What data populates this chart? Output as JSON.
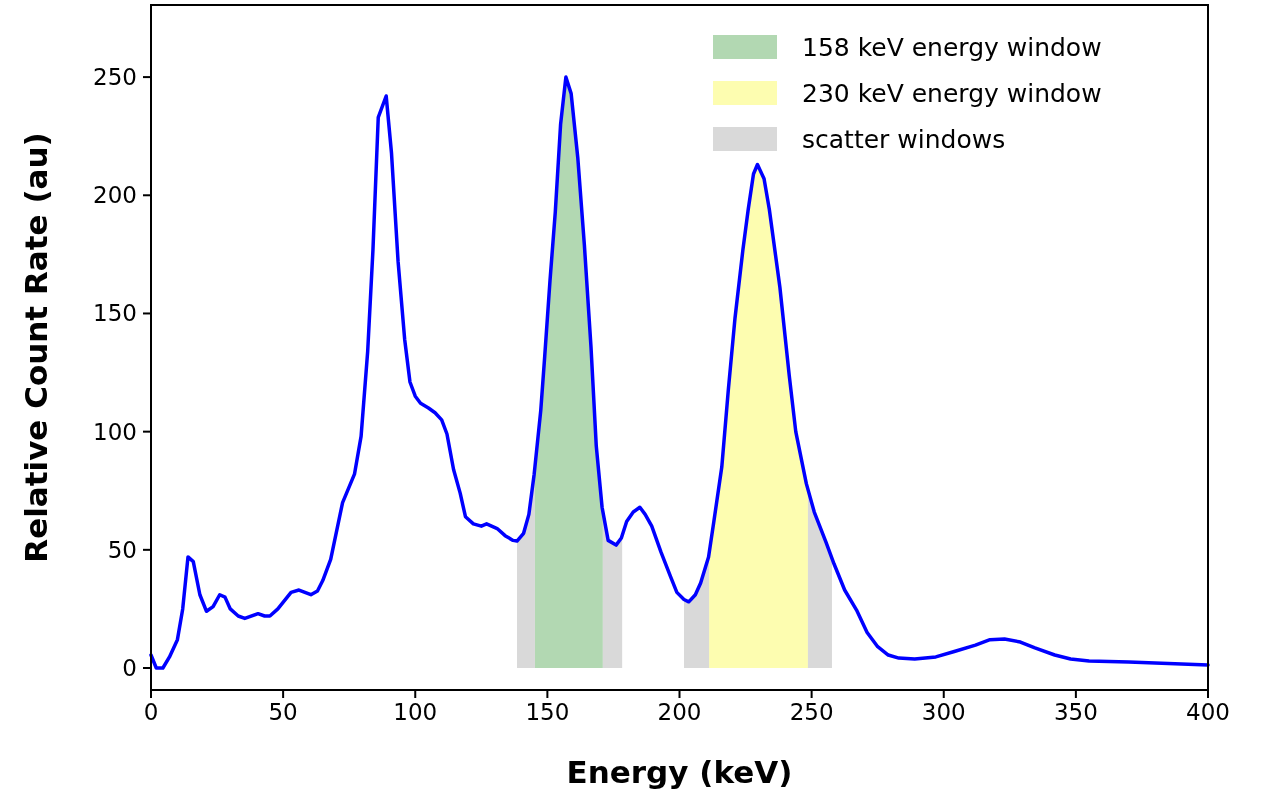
{
  "chart_data": {
    "type": "line",
    "xlabel": "Energy (keV)",
    "ylabel": "Relative Count Rate (au)",
    "xlim": [
      0,
      400
    ],
    "ylim": [
      -9.3,
      280.5
    ],
    "xticks": [
      0,
      50,
      100,
      150,
      200,
      250,
      300,
      350,
      400
    ],
    "yticks": [
      0,
      50,
      100,
      150,
      200,
      250
    ],
    "legend": "top right",
    "grid": false,
    "series": [
      {
        "type": "area",
        "name": "158 keV energy window",
        "color": "#b2d8b2",
        "x": [
          145.3,
          147.5,
          149,
          151,
          153,
          155,
          157,
          159,
          161.5,
          164,
          166.5,
          168.5,
          171
        ],
        "values": [
          85,
          109,
          132,
          164,
          193,
          230,
          250,
          243,
          216,
          179,
          136,
          94,
          66
        ]
      },
      {
        "type": "area",
        "name": "230 keV energy window",
        "color": "#fdfdb0",
        "x": [
          211.2,
          213,
          216,
          218.5,
          221,
          224,
          226,
          228,
          229.5,
          232,
          234,
          238,
          241.5,
          244,
          248.6
        ],
        "values": [
          48,
          62,
          85,
          118,
          148,
          177,
          194,
          209,
          213,
          207,
          194,
          161,
          124,
          100,
          76
        ]
      },
      {
        "type": "area",
        "name": "scatter windows",
        "color": "#d9d9d9",
        "x": [
          138.5,
          141,
          143,
          145.3,
          160,
          171,
          173,
          176,
          178.3,
          190,
          201.7,
          203.5,
          206,
          208,
          211.2,
          230,
          248.6,
          251,
          255.5,
          257.7
        ],
        "values": [
          53.7,
          57,
          65,
          85,
          null,
          66,
          54,
          52,
          56,
          null,
          29,
          28,
          31,
          36,
          48,
          null,
          76,
          66,
          53,
          48
        ]
      },
      {
        "color": "#0000ff",
        "x": [
          0,
          2,
          4.5,
          7,
          10,
          12,
          14,
          16,
          18.5,
          21,
          23.5,
          26,
          28,
          30,
          33,
          35.5,
          40.5,
          43,
          45,
          48,
          53,
          56,
          60.5,
          63,
          65,
          68,
          72.5,
          77,
          79.5,
          82,
          84,
          86,
          89,
          91,
          93.5,
          96,
          98,
          100,
          102,
          105,
          107.5,
          110,
          112,
          114.5,
          117,
          119,
          122,
          125,
          127,
          131,
          134,
          137,
          138.5,
          141,
          143,
          145,
          147.5,
          149,
          151,
          153,
          155,
          157,
          159,
          161.5,
          164,
          166.5,
          168.5,
          170.7,
          173,
          176,
          178,
          180,
          182.5,
          185,
          187,
          189.5,
          193,
          196.5,
          199,
          201.7,
          203.5,
          206,
          208,
          211,
          213,
          216,
          218.5,
          221,
          224,
          226,
          228,
          229.5,
          232,
          234,
          238,
          241.5,
          244,
          248,
          251,
          255.5,
          258.5,
          262.5,
          267,
          271,
          275,
          279,
          283,
          289,
          297,
          304,
          312,
          317.5,
          323,
          329,
          334.5,
          342,
          348,
          355,
          370,
          400
        ],
        "values": [
          5.5,
          0,
          0,
          4.7,
          12,
          25,
          47,
          45,
          31,
          24,
          26,
          31,
          30,
          25,
          22,
          21,
          23,
          22,
          22,
          25,
          32,
          33,
          31,
          32.6,
          37,
          46,
          70,
          82,
          98,
          134,
          177,
          233,
          242,
          218,
          172,
          139,
          121,
          115,
          112,
          110,
          108,
          105,
          99,
          84,
          74,
          64,
          61,
          60,
          61,
          59,
          56,
          54,
          53.7,
          57,
          65,
          82,
          109,
          132,
          164,
          193,
          230,
          250,
          243,
          216,
          179,
          136,
          94,
          68,
          54,
          52,
          55,
          62,
          66,
          68,
          65,
          60,
          49,
          39,
          32,
          29,
          28,
          31,
          36,
          47,
          62,
          85,
          118,
          148,
          177,
          194,
          209,
          213,
          207,
          194,
          161,
          124,
          100,
          78,
          66,
          53,
          44,
          33,
          24.5,
          15,
          9,
          5.5,
          4.2,
          3.8,
          4.7,
          7,
          9.7,
          12,
          12.3,
          11,
          8.5,
          5.5,
          3.8,
          3,
          2.5,
          1.3
        ]
      }
    ]
  }
}
